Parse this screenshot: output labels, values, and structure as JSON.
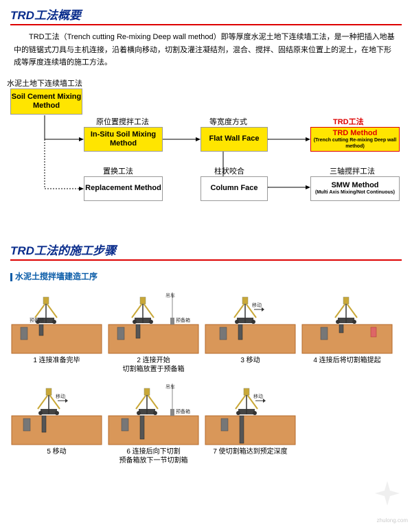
{
  "title1": "TRD工法概要",
  "intro": "TRD工法（Trench cutting Re-mixing Deep wall method）即等厚度水泥土地下连续墙工法，是一种把插入地基中的链锯式刀具与主机连接，沿着横向移动，切割及灌注凝结剂，混合、搅拌、固结原来位置上的泥土，在地下形成等厚度连续墙的施工方法。",
  "labels": {
    "a": "水泥土地下连续墙工法",
    "b": "原位置搅拌工法",
    "c": "等宽度方式",
    "d": "TRD工法",
    "e": "置换工法",
    "f": "柱状咬合",
    "g": "三轴搅拌工法"
  },
  "boxes": {
    "b1": {
      "en": "Soil Cement Mixing Method"
    },
    "b2": {
      "en": "In-Situ Soil Mixing Method"
    },
    "b3": {
      "en": "Flat Wall Face"
    },
    "b4": {
      "en": "TRD Method",
      "sub": "(Trench cutting Re-mixing Deep wall method)"
    },
    "b5": {
      "en": "Replacement Method"
    },
    "b6": {
      "en": "Column Face"
    },
    "b7": {
      "en": "SMW Method",
      "sub": "(Multi Axis Mixing/Not Continuous)"
    }
  },
  "title2": "TRD工法的施工步骤",
  "subtitle": "水泥土搅拌墙建造工序",
  "steps": [
    {
      "n": "1 连接准备完毕",
      "tags": [
        "预备槽"
      ]
    },
    {
      "n": "2 连接开始\n切割箱放置于预备箱",
      "tags": [
        "吊车",
        "预备箱"
      ]
    },
    {
      "n": "3 移动",
      "tags": [
        "移动"
      ]
    },
    {
      "n": "4 连接后将切割箱提起",
      "tags": []
    },
    {
      "n": "5 移动",
      "tags": [
        "移动"
      ]
    },
    {
      "n": "6 连接后向下切割\n预备箱放下一节切割箱",
      "tags": [
        "吊车",
        "预备箱"
      ]
    },
    {
      "n": "7 使切割箱达到预定深度",
      "tags": [
        "移动"
      ]
    }
  ],
  "colors": {
    "soil": "#d99759",
    "soilBorder": "#b56a2a",
    "machine": "#c9a838",
    "frame": "#444",
    "box": "#666"
  },
  "watermark": "zhulong.com"
}
